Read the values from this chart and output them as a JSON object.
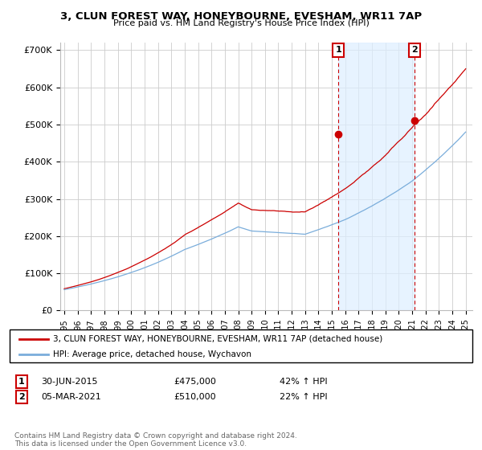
{
  "title": "3, CLUN FOREST WAY, HONEYBOURNE, EVESHAM, WR11 7AP",
  "subtitle": "Price paid vs. HM Land Registry's House Price Index (HPI)",
  "hpi_label": "HPI: Average price, detached house, Wychavon",
  "property_label": "3, CLUN FOREST WAY, HONEYBOURNE, EVESHAM, WR11 7AP (detached house)",
  "transaction1_date": "30-JUN-2015",
  "transaction1_price": 475000,
  "transaction1_hpi": "42% ↑ HPI",
  "transaction2_date": "05-MAR-2021",
  "transaction2_price": 510000,
  "transaction2_hpi": "22% ↑ HPI",
  "copyright": "Contains HM Land Registry data © Crown copyright and database right 2024.\nThis data is licensed under the Open Government Licence v3.0.",
  "ylim": [
    0,
    720000
  ],
  "yticks": [
    0,
    100000,
    200000,
    300000,
    400000,
    500000,
    600000,
    700000
  ],
  "ytick_labels": [
    "£0",
    "£100K",
    "£200K",
    "£300K",
    "£400K",
    "£500K",
    "£600K",
    "£700K"
  ],
  "property_color": "#cc0000",
  "hpi_color": "#7aaddb",
  "shade_color": "#ddeeff",
  "background_color": "#ffffff",
  "grid_color": "#cccccc",
  "transaction1_x": 2015.5,
  "transaction2_x": 2021.17,
  "vline_color": "#cc0000",
  "marker_box_color": "#cc0000",
  "xlim_left": 1994.7,
  "xlim_right": 2025.5
}
